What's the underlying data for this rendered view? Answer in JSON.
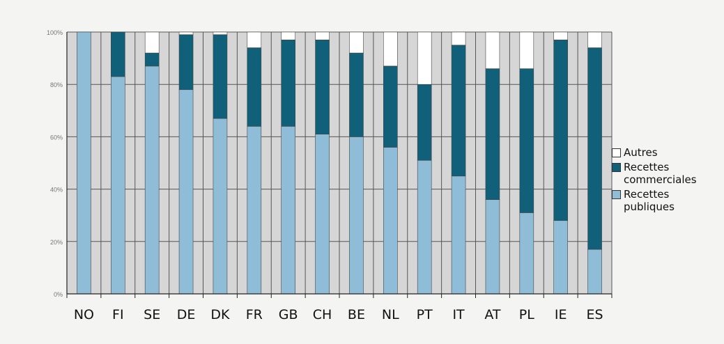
{
  "chart_data": {
    "type": "bar",
    "stacked": true,
    "categories": [
      "NO",
      "FI",
      "SE",
      "DE",
      "DK",
      "FR",
      "GB",
      "CH",
      "BE",
      "NL",
      "PT",
      "IT",
      "AT",
      "PL",
      "IE",
      "ES"
    ],
    "series": [
      {
        "name": "Recettes\npubliques",
        "color": "#8fbcd6",
        "values": [
          100,
          83,
          87,
          78,
          67,
          64,
          64,
          61,
          60,
          56,
          51,
          45,
          36,
          31,
          28,
          17
        ]
      },
      {
        "name": "Recettes\ncommerciales",
        "color": "#0f6078",
        "values": [
          0,
          17,
          5,
          21,
          32,
          30,
          33,
          36,
          32,
          31,
          29,
          50,
          50,
          55,
          69,
          77
        ]
      },
      {
        "name": "Autres",
        "color": "#ffffff",
        "values": [
          0,
          0,
          8,
          1,
          1,
          6,
          3,
          3,
          8,
          13,
          20,
          5,
          14,
          14,
          3,
          6
        ]
      }
    ],
    "yticks": [
      "0%",
      "20%",
      "40%",
      "60%",
      "80%",
      "100%"
    ],
    "ylim": [
      0,
      100
    ],
    "grid": true,
    "legend_position": "right",
    "legend_order": [
      "Autres",
      "Recettes\ncommerciales",
      "Recettes\npubliques"
    ]
  }
}
